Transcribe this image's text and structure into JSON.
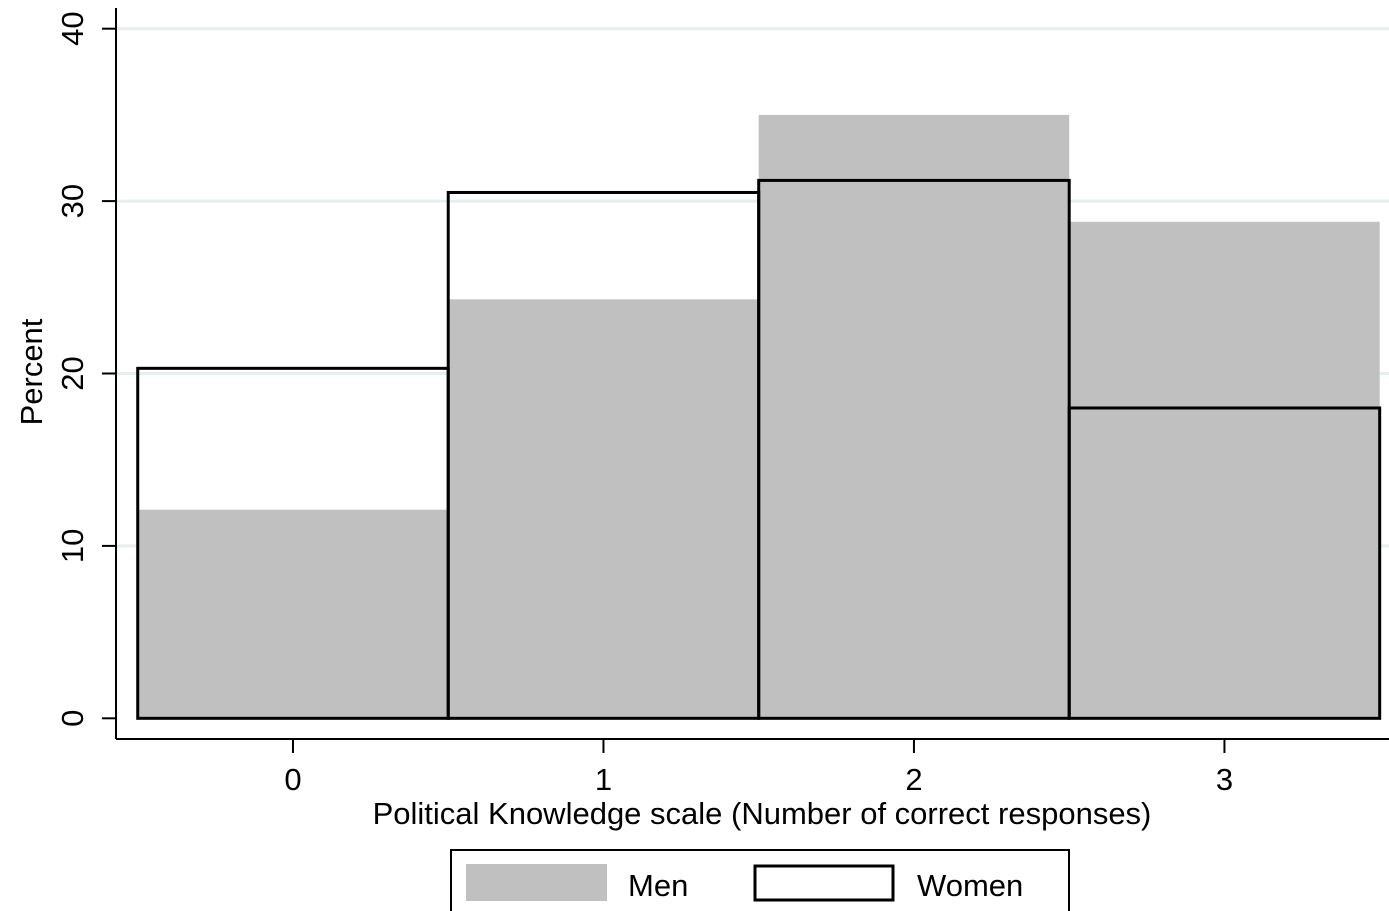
{
  "chart_data": {
    "type": "bar",
    "title": "",
    "xlabel": "Political Knowledge scale (Number of correct responses)",
    "ylabel": "Percent",
    "categories": [
      "0",
      "1",
      "2",
      "3"
    ],
    "x": [
      0,
      1,
      2,
      3
    ],
    "xlim": [
      -0.57,
      3.53
    ],
    "ylim": [
      -1.2,
      41.2
    ],
    "yticks": [
      0,
      10,
      20,
      30,
      40
    ],
    "grid": true,
    "legend_position": "bottom",
    "series": [
      {
        "name": "Men",
        "style": "filled",
        "color": "#c0c0c0",
        "values": [
          12.1,
          24.3,
          35.0,
          28.8
        ]
      },
      {
        "name": "Women",
        "style": "outline",
        "color": "#000000",
        "values": [
          20.3,
          30.5,
          31.2,
          18.0
        ]
      }
    ],
    "colors": {
      "grid": "#e6eef0",
      "axis": "#000000"
    }
  }
}
